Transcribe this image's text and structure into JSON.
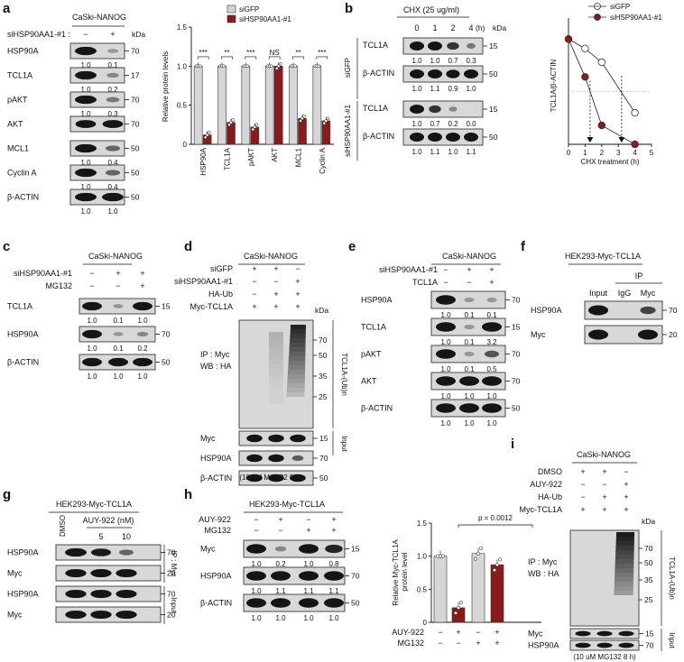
{
  "panels": {
    "a": "a",
    "b": "b",
    "c": "c",
    "d": "d",
    "e": "e",
    "f": "f",
    "g": "g",
    "h": "h",
    "i": "i"
  },
  "common": {
    "kda": "kDa",
    "plus": "+",
    "minus": "−",
    "input": "Input",
    "ip_myc": "IP : Myc",
    "wb_ha": "WB : HA",
    "ubn": "TCL1A-(Ub)n",
    "mg132_note": "(10 uM MG132 8 h)"
  },
  "a": {
    "header": "CaSki-NANOG",
    "treat_label": "siHSP90AA1-#1 :",
    "treat_signs": [
      "−",
      "+"
    ],
    "blots": [
      {
        "label": "HSP90A",
        "quant": [
          "1.0",
          "0.1"
        ],
        "kda": "70"
      },
      {
        "label": "TCL1A",
        "quant": [
          "1.0",
          "0.2"
        ],
        "kda": "17"
      },
      {
        "label": "pAKT",
        "quant": [
          "1.0",
          "0.3"
        ],
        "kda": "70"
      },
      {
        "label": "AKT",
        "quant": [
          "",
          ""
        ],
        "kda": "70"
      },
      {
        "label": "MCL1",
        "quant": [
          "1.0",
          "0.4"
        ],
        "kda": "50"
      },
      {
        "label": "Cyclin A",
        "quant": [
          "1.0",
          "0.4"
        ],
        "kda": "50"
      },
      {
        "label": "β-ACTIN",
        "quant": [
          "1.0",
          "1.0"
        ],
        "kda": "50"
      }
    ]
  },
  "b": {
    "header": "CHX (25 ug/ml)",
    "times": [
      "0",
      "1",
      "2",
      "4"
    ],
    "time_unit": "(h)",
    "groups": [
      {
        "label": "siGFP",
        "blots": [
          {
            "label": "TCL1A",
            "quant": [
              "1.0",
              "1.0",
              "0.7",
              "0.3"
            ],
            "kda": "15"
          },
          {
            "label": "β-ACTIN",
            "quant": [
              "1.0",
              "1.1",
              "0.9",
              "1.0"
            ],
            "kda": "50"
          }
        ]
      },
      {
        "label": "siHSP90AA1-#1",
        "blots": [
          {
            "label": "TCL1A",
            "quant": [
              "1.0",
              "0.7",
              "0.2",
              "0.0"
            ],
            "kda": "15"
          },
          {
            "label": "β-ACTIN",
            "quant": [
              "1.0",
              "1.1",
              "1.0",
              "1.1"
            ],
            "kda": "50"
          }
        ]
      }
    ]
  },
  "c": {
    "header": "CaSki-NANOG",
    "rows": [
      {
        "label": "siHSP90AA1-#1",
        "signs": [
          "−",
          "+",
          "+"
        ]
      },
      {
        "label": "MG132",
        "signs": [
          "−",
          "−",
          "+"
        ]
      }
    ],
    "blots": [
      {
        "label": "TCL1A",
        "quant": [
          "1.0",
          "0.1",
          "1.0"
        ],
        "kda": "15"
      },
      {
        "label": "HSP90A",
        "quant": [
          "1.0",
          "0.1",
          "0.2"
        ],
        "kda": "70"
      },
      {
        "label": "β-ACTIN",
        "quant": [
          "1.0",
          "1.0",
          "1.0"
        ],
        "kda": "50"
      }
    ]
  },
  "d": {
    "header": "CaSki-NANOG",
    "rows": [
      {
        "label": "siGFP",
        "signs": [
          "+",
          "+",
          "−"
        ]
      },
      {
        "label": "siHSP90AA1-#1",
        "signs": [
          "−",
          "−",
          "+"
        ]
      },
      {
        "label": "HA-Ub",
        "signs": [
          "−",
          "+",
          "+"
        ]
      },
      {
        "label": "Myc-TCL1A",
        "signs": [
          "+",
          "+",
          "+"
        ]
      }
    ],
    "ub_kda": [
      "70",
      "50",
      "35",
      "25"
    ],
    "blots": [
      {
        "label": "Myc",
        "kda": "15"
      },
      {
        "label": "HSP90A",
        "kda": "70"
      },
      {
        "label": "β-ACTIN",
        "kda": "50"
      }
    ]
  },
  "e": {
    "header": "CaSki-NANOG",
    "rows": [
      {
        "label": "siHSP90AA1-#1",
        "signs": [
          "−",
          "+",
          "+"
        ]
      },
      {
        "label": "TCL1A",
        "signs": [
          "−",
          "−",
          "+"
        ]
      }
    ],
    "blots": [
      {
        "label": "HSP90A",
        "quant": [
          "1.0",
          "0.1",
          "0.1"
        ],
        "kda": "70"
      },
      {
        "label": "TCL1A",
        "quant": [
          "1.0",
          "0.1",
          "3.2"
        ],
        "kda": "15"
      },
      {
        "label": "pAKT",
        "quant": [
          "1.0",
          "0.1",
          "0.5"
        ],
        "kda": "70"
      },
      {
        "label": "AKT",
        "quant": [
          "1.0",
          "1.0",
          "1.0"
        ],
        "kda": "70"
      },
      {
        "label": "β-ACTIN",
        "quant": [
          "1.0",
          "1.0",
          "1.0"
        ],
        "kda": "50"
      }
    ]
  },
  "f": {
    "header": "HEK293-Myc-TCL1A",
    "ip": "IP",
    "lanes": [
      "Input",
      "IgG",
      "Myc"
    ],
    "blots": [
      {
        "label": "HSP90A",
        "kda": "70"
      },
      {
        "label": "Myc",
        "kda": "20"
      }
    ]
  },
  "g": {
    "header": "HEK293-Myc-TCL1A",
    "lane1": "DMSO",
    "drug": "AUY-922 (nM)",
    "doses": [
      "5",
      "10"
    ],
    "blots": [
      {
        "label": "HSP90A",
        "kda": "70"
      },
      {
        "label": "Myc",
        "kda": "20"
      },
      {
        "label": "HSP90A",
        "kda": "70"
      },
      {
        "label": "Myc",
        "kda": "20"
      }
    ]
  },
  "h": {
    "header": "HEK293-Myc-TCL1A",
    "rows": [
      {
        "label": "AUY-922",
        "signs": [
          "−",
          "+",
          "−",
          "+"
        ]
      },
      {
        "label": "MG132",
        "signs": [
          "−",
          "−",
          "+",
          "+"
        ]
      }
    ],
    "blots": [
      {
        "label": "Myc",
        "quant": [
          "1.0",
          "0.2",
          "1.0",
          "0.8"
        ],
        "kda": "15"
      },
      {
        "label": "HSP90A",
        "quant": [
          "1.0",
          "1.1",
          "1.1",
          "1.1"
        ],
        "kda": "70"
      },
      {
        "label": "β-ACTIN",
        "quant": [
          "1.0",
          "1.0",
          "1.0",
          "1.0"
        ],
        "kda": "50"
      }
    ],
    "pval": "p = 0.0012",
    "bar_rows": [
      {
        "label": "AUY-922",
        "signs": [
          "−",
          "+",
          "−",
          "+"
        ]
      },
      {
        "label": "MG132",
        "signs": [
          "−",
          "−",
          "+",
          "+"
        ]
      }
    ]
  },
  "i": {
    "header": "CaSki-NANOG",
    "rows": [
      {
        "label": "DMSO",
        "signs": [
          "+",
          "+",
          "−"
        ]
      },
      {
        "label": "AUY-922",
        "signs": [
          "−",
          "−",
          "+"
        ]
      },
      {
        "label": "HA-Ub",
        "signs": [
          "−",
          "+",
          "+"
        ]
      },
      {
        "label": "Myc-TCL1A",
        "signs": [
          "+",
          "+",
          "+"
        ]
      }
    ],
    "ub_kda": [
      "70",
      "50",
      "35",
      "25"
    ],
    "blots": [
      {
        "label": "Myc",
        "kda": "15"
      },
      {
        "label": "HSP90A",
        "kda": "70"
      }
    ]
  },
  "chart_data": [
    {
      "panel": "a",
      "type": "bar",
      "ylabel": "Relative protein levels",
      "ylim": [
        0,
        1.5
      ],
      "yticks": [
        "0",
        "0.5",
        "1.0",
        "1.5"
      ],
      "categories": [
        "HSP90A",
        "TCL1A",
        "pAKT",
        "AKT",
        "MCL1",
        "Cyclin A"
      ],
      "series": [
        {
          "name": "siGFP",
          "color": "#d6d6d6",
          "values": [
            1.0,
            1.0,
            1.0,
            1.0,
            1.0,
            1.0
          ]
        },
        {
          "name": "siHSP90AA1-#1",
          "color": "#8b1a1a",
          "values": [
            0.12,
            0.28,
            0.22,
            1.0,
            0.33,
            0.3
          ]
        }
      ],
      "significance": [
        "***",
        "**",
        "***",
        "NS",
        "**",
        "***"
      ],
      "legend": "top-right"
    },
    {
      "panel": "b",
      "type": "line",
      "xlabel": "CHX treatment (h)",
      "ylabel": "TCL1A/β-ACTIN",
      "xlim": [
        0,
        5
      ],
      "ylim": [
        0,
        1.2
      ],
      "xticks": [
        "0",
        "1",
        "2",
        "3",
        "4",
        "5"
      ],
      "series": [
        {
          "name": "siGFP",
          "color": "#ffffff",
          "x": [
            0,
            1,
            2,
            4
          ],
          "y": [
            1.0,
            0.91,
            0.78,
            0.3
          ]
        },
        {
          "name": "siHSP90AA1-#1",
          "color": "#8b1a1a",
          "x": [
            0,
            1,
            2,
            4
          ],
          "y": [
            1.0,
            0.64,
            0.18,
            0.0
          ]
        }
      ],
      "half_life_arrows": [
        1.3,
        3.2
      ],
      "legend": "top-right"
    },
    {
      "panel": "h",
      "type": "bar",
      "ylabel": "Relative Myc-TCL1A protein level",
      "ylim": [
        0,
        1.5
      ],
      "yticks": [
        "0",
        "0.5",
        "1.0",
        "1.5"
      ],
      "categories": [
        "−/−",
        "+/−",
        "−/+",
        "+/+"
      ],
      "values": [
        1.0,
        0.22,
        1.04,
        0.87
      ],
      "colors": [
        "#d6d6d6",
        "#8b1a1a",
        "#d6d6d6",
        "#8b1a1a"
      ],
      "annotation": "p = 0.0012"
    }
  ]
}
